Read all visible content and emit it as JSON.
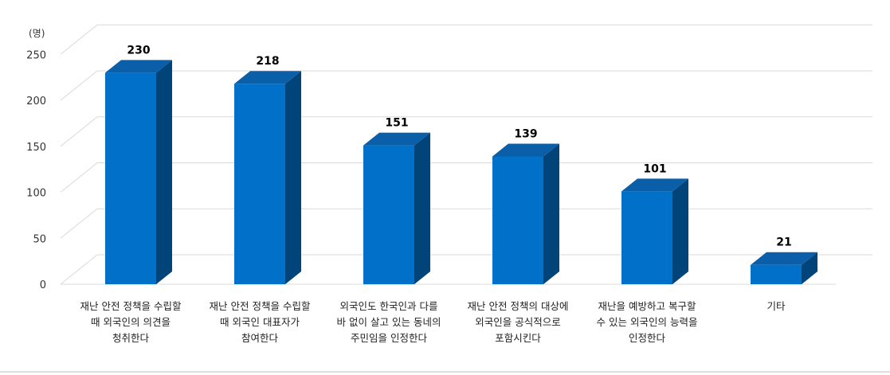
{
  "chart_data": {
    "type": "bar",
    "unit_label": "(명)",
    "categories": [
      [
        "재난 안전 정책을 수립할",
        "때 외국인의 의견을",
        "청취한다"
      ],
      [
        "재난 안전 정책을 수립할",
        "때 외국인 대표자가",
        "참여한다"
      ],
      [
        "외국인도 한국인과 다를",
        "바 없이 살고 있는 동네의",
        "주민임을 인정한다"
      ],
      [
        "재난 안전 정책의 대상에",
        "외국인을 공식적으로",
        "포함시킨다"
      ],
      [
        "재난을 예방하고 복구할",
        "수 있는 외국인의 능력을",
        "인정한다"
      ],
      [
        "기타"
      ]
    ],
    "values": [
      230,
      218,
      151,
      139,
      101,
      21
    ],
    "value_labels": [
      "230",
      "218",
      "151",
      "139",
      "101",
      "21"
    ],
    "yticks": [
      "0",
      "50",
      "100",
      "150",
      "200",
      "250"
    ],
    "ylim": [
      0,
      250
    ],
    "grid": true,
    "legend": "none",
    "colors": {
      "front": "#0070C8",
      "side": "#00447A",
      "top": "#0A5FA8"
    }
  }
}
